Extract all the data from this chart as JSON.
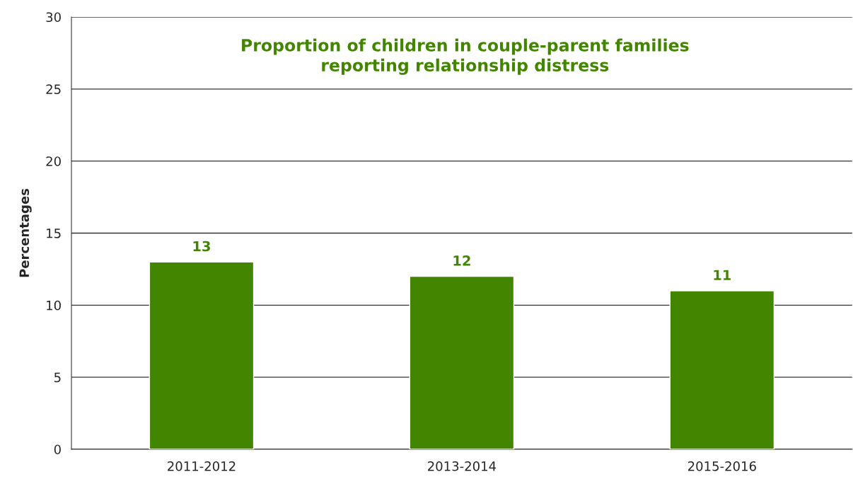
{
  "chart_data": {
    "type": "bar",
    "title": "Proportion of children in couple-parent families\nreporting relationship distress",
    "categories": [
      "2011-2012",
      "2013-2014",
      "2015-2016"
    ],
    "values": [
      13,
      12,
      11
    ],
    "color": "#428600",
    "ylabel": "Percentages",
    "ylim": [
      0,
      30
    ],
    "yticks": [
      0,
      5,
      10,
      15,
      20,
      25,
      30
    ],
    "grid": "y",
    "data_labels": true
  }
}
